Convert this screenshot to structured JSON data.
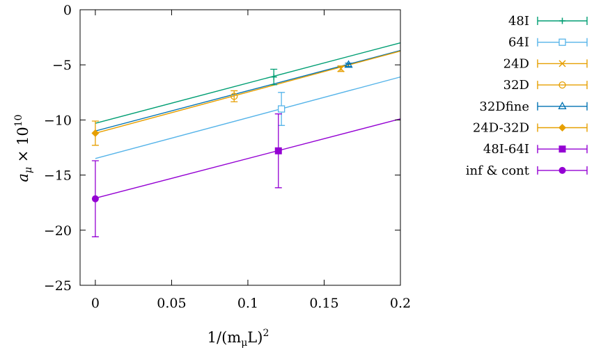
{
  "chart_data": {
    "type": "scatter",
    "title": "",
    "xlabel": "1/(m_μL)²",
    "ylabel": "a_μ × 10¹⁰",
    "xlabel_parts": {
      "prefix": "1/(m",
      "sub": "μ",
      "mid": "L)",
      "sup": "2"
    },
    "ylabel_parts": {
      "main": "a",
      "sub": "μ",
      "times": " × 10",
      "sup": "10"
    },
    "xlim": [
      -0.01,
      0.2
    ],
    "ylim": [
      -25,
      0
    ],
    "xticks": [
      0,
      0.05,
      0.1,
      0.15,
      0.2
    ],
    "xtick_labels": [
      "0",
      "0.05",
      "0.1",
      "0.15",
      "0.2"
    ],
    "yticks": [
      -25,
      -20,
      -15,
      -10,
      -5,
      0
    ],
    "ytick_labels": [
      "−25",
      "−20",
      "−15",
      "−10",
      "−5",
      "0"
    ],
    "grid": false,
    "legend_position": "outside-right",
    "series": [
      {
        "name": "48I",
        "color": "#009e73",
        "marker": "plus",
        "points": [
          {
            "x": 0.117,
            "y": -6.1,
            "err": 0.7
          }
        ],
        "fit": {
          "x0": 0,
          "y0": -10.3,
          "x1": 0.2,
          "y1": -3.0
        }
      },
      {
        "name": "64I",
        "color": "#56b4e9",
        "marker": "square-open",
        "points": [
          {
            "x": 0.122,
            "y": -9.0,
            "err": 1.5
          }
        ],
        "fit": {
          "x0": 0,
          "y0": -13.5,
          "x1": 0.2,
          "y1": -6.1
        }
      },
      {
        "name": "24D",
        "color": "#e69f00",
        "marker": "cross",
        "points": [
          {
            "x": 0.161,
            "y": -5.35,
            "err": 0.25
          }
        ],
        "fit": null
      },
      {
        "name": "32D",
        "color": "#e69f00",
        "marker": "circle-open",
        "points": [
          {
            "x": 0.091,
            "y": -7.85,
            "err": 0.5
          }
        ],
        "fit": null
      },
      {
        "name": "32Dfine",
        "color": "#0072b2",
        "marker": "triangle-open",
        "points": [
          {
            "x": 0.166,
            "y": -5.0,
            "err": 0.15
          }
        ],
        "fit": {
          "x0": 0,
          "y0": -11.0,
          "x1": 0.2,
          "y1": -3.7
        }
      },
      {
        "name": "24D-32D",
        "color": "#e69f00",
        "marker": "diamond",
        "points": [
          {
            "x": 0,
            "y": -11.2,
            "err": 1.1
          }
        ],
        "fit": {
          "x0": 0,
          "y0": -11.2,
          "x1": 0.2,
          "y1": -3.75
        }
      },
      {
        "name": "48I-64I",
        "color": "#9400d3",
        "marker": "square",
        "points": [
          {
            "x": 0.12,
            "y": -12.8,
            "err": 3.35
          }
        ],
        "fit": {
          "x0": 0,
          "y0": -17.1,
          "x1": 0.2,
          "y1": -9.9
        }
      },
      {
        "name": "inf & cont",
        "color": "#9400d3",
        "marker": "circle",
        "points": [
          {
            "x": 0,
            "y": -17.15,
            "err": 3.45
          }
        ],
        "fit": null
      }
    ]
  }
}
